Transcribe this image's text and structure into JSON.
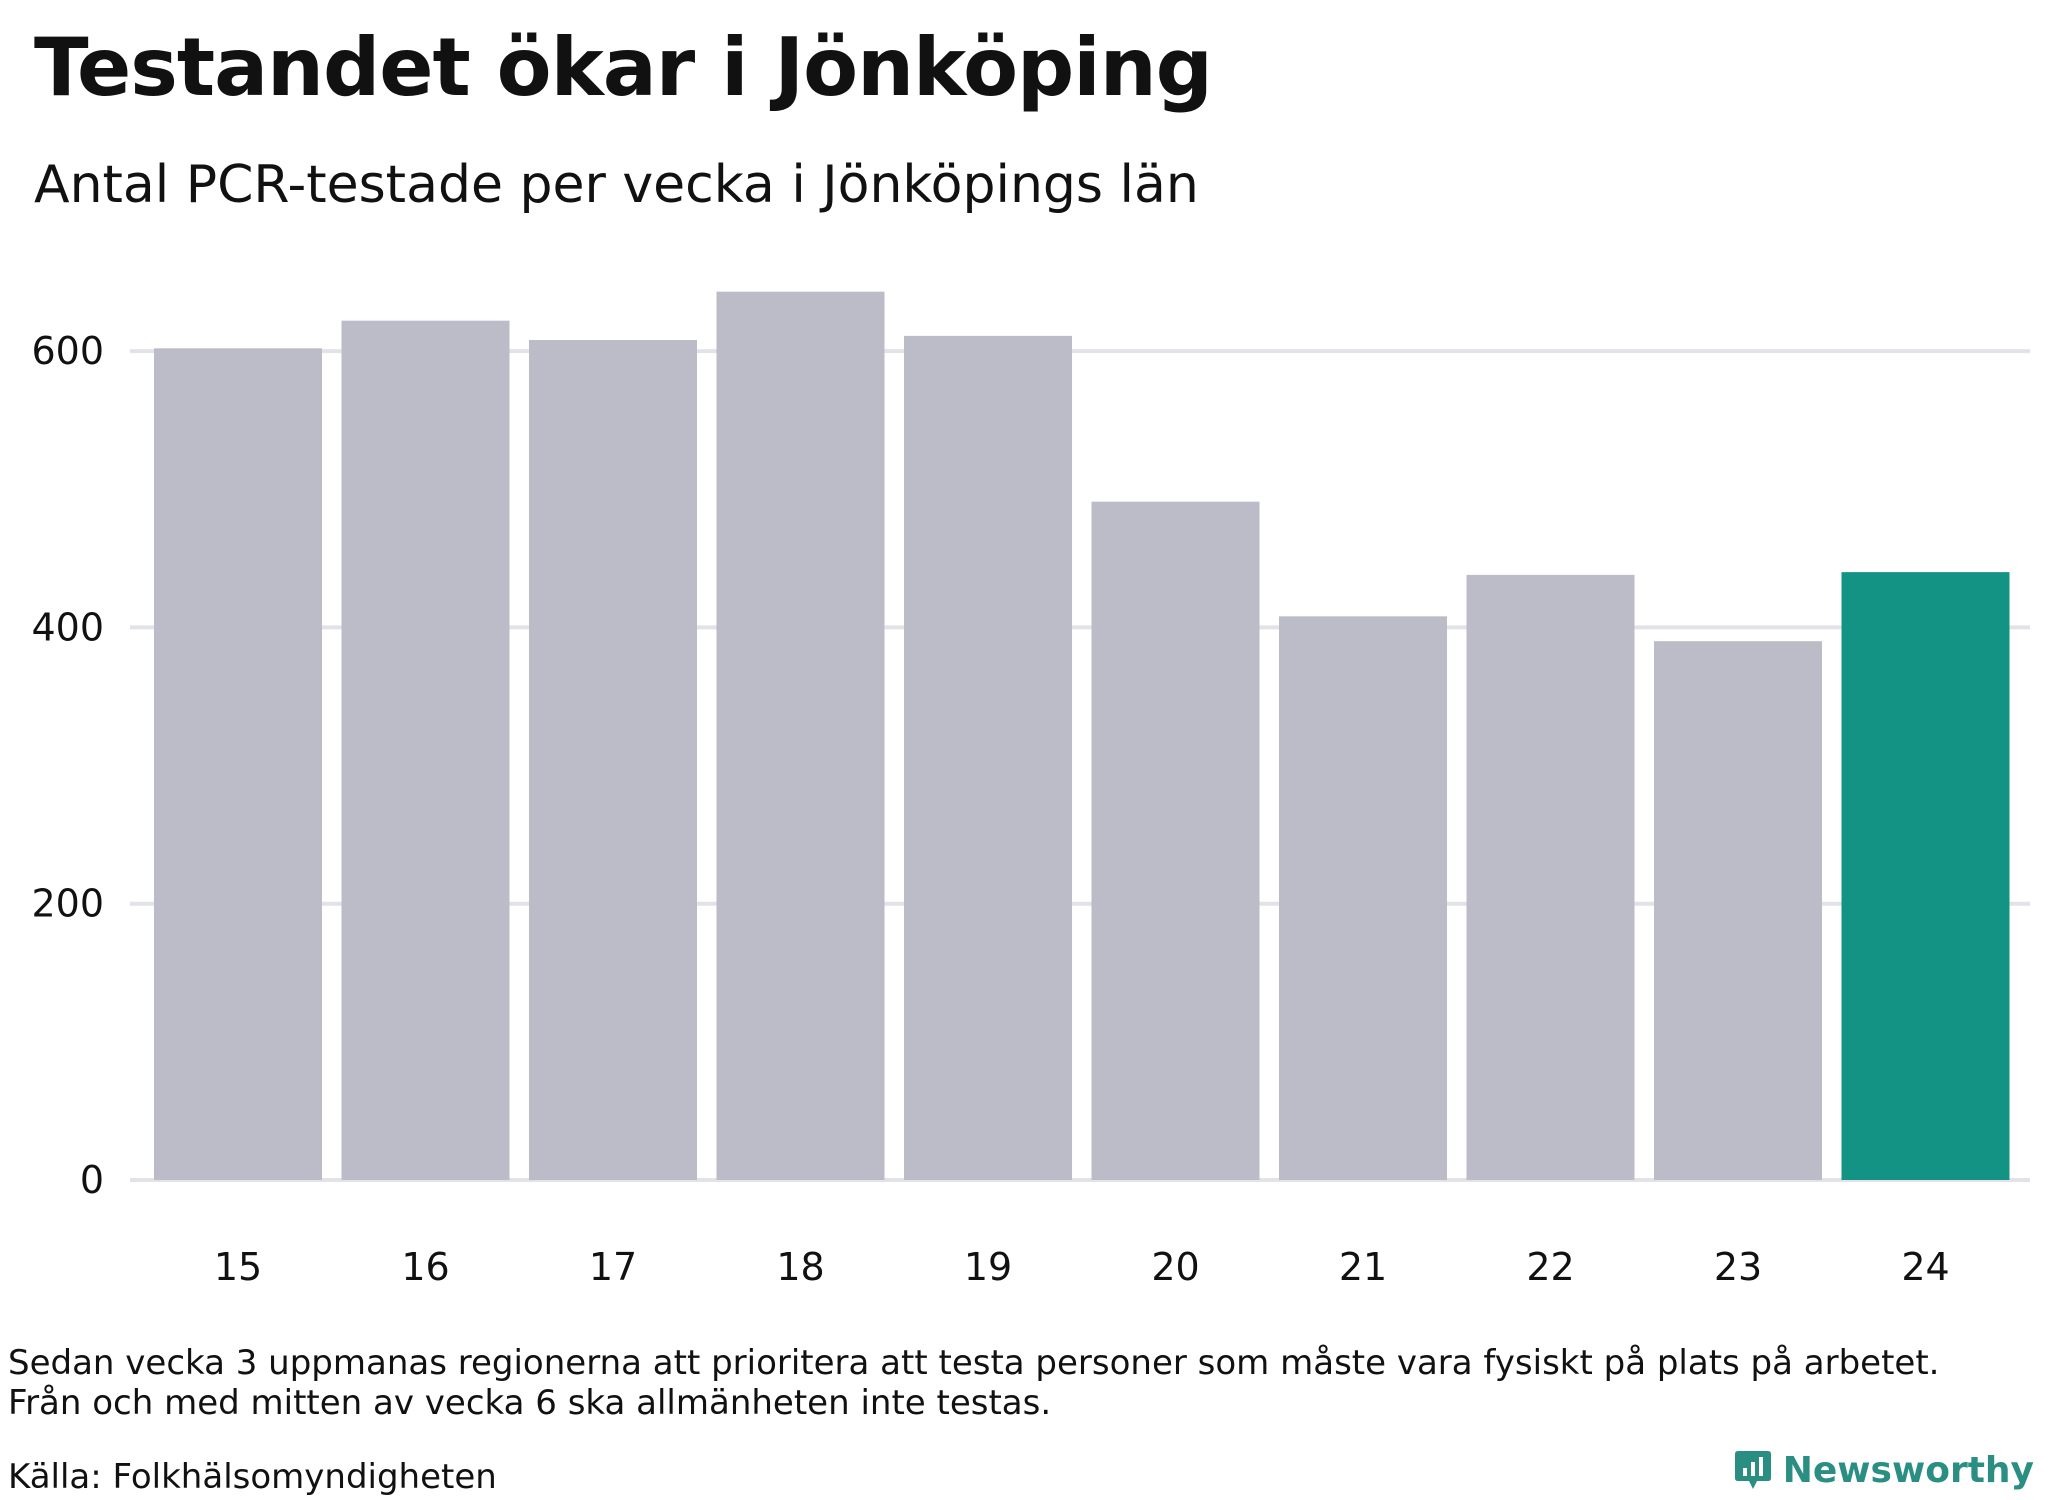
{
  "title": "Testandet ökar i Jönköping",
  "subtitle": "Antal PCR-testade per vecka i Jönköpings län",
  "note": {
    "line1": "Sedan vecka 3 uppmanas regionerna att prioritera att testa personer som måste vara fysiskt på plats på arbetet.",
    "line2": "Från och med mitten av vecka 6 ska allmänheten inte testas."
  },
  "source": "Källa: Folkhälsomyndigheten",
  "brand": {
    "name": "Newsworthy",
    "icon": "newsworthy-logo-icon",
    "color": "#2a8f82"
  },
  "chart_data": {
    "type": "bar",
    "categories": [
      "15",
      "16",
      "17",
      "18",
      "19",
      "20",
      "21",
      "22",
      "23",
      "24"
    ],
    "values": [
      602,
      622,
      608,
      643,
      611,
      491,
      408,
      438,
      390,
      440
    ],
    "title": "Testandet ökar i Jönköping",
    "subtitle": "Antal PCR-testade per vecka i Jönköpings län",
    "xlabel": "",
    "ylabel": "",
    "ylim": [
      0,
      650
    ],
    "yticks": [
      0,
      200,
      400,
      600
    ],
    "grid": true,
    "legend": "none",
    "colors": {
      "bar": "#bcbbc8",
      "highlight": "#139384",
      "grid": "#e3e2e8"
    },
    "highlight_index": 9
  }
}
